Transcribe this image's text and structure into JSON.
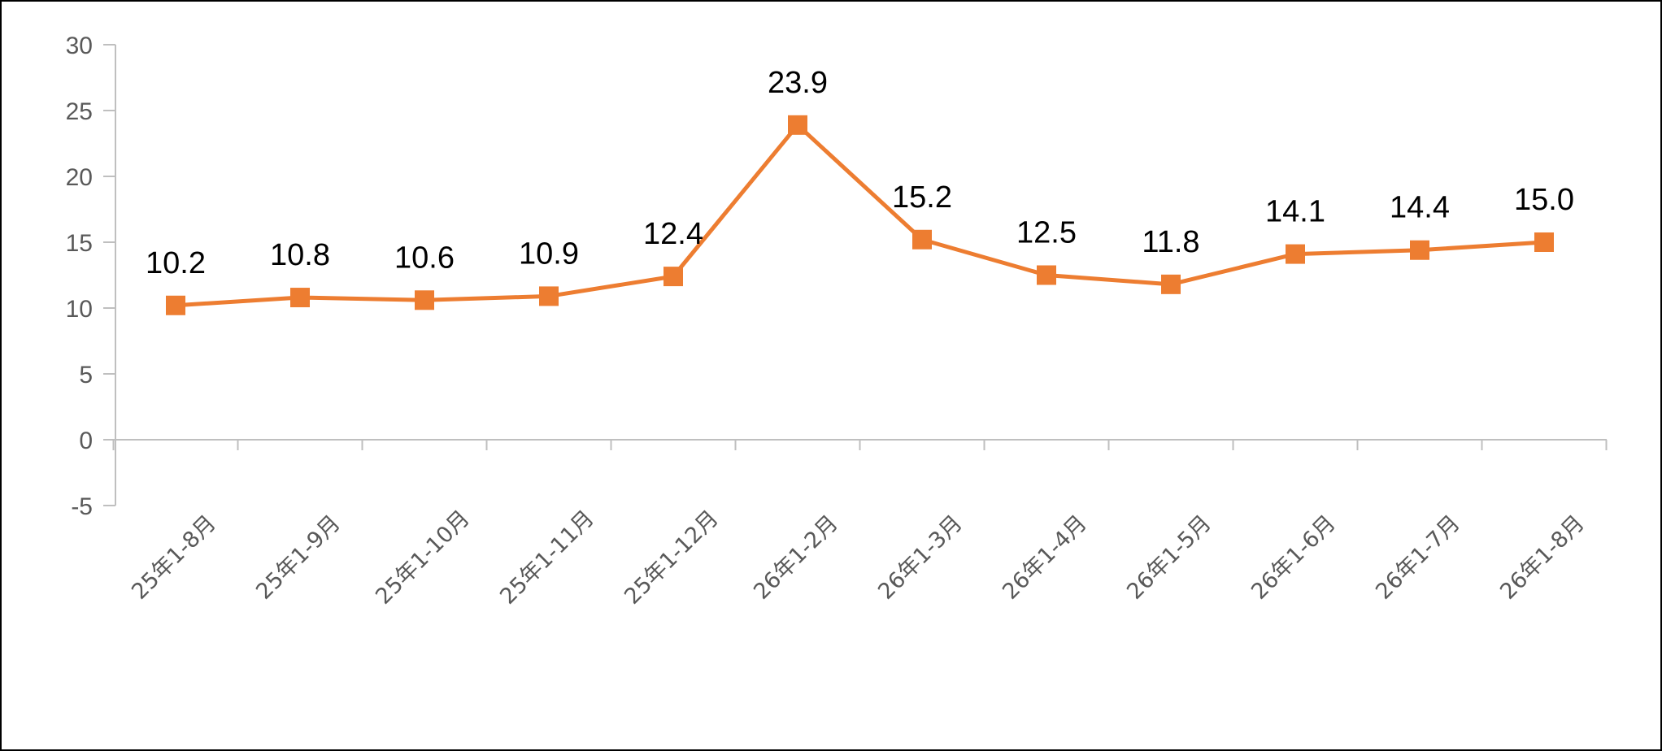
{
  "chart_data": {
    "type": "line",
    "title": "",
    "xlabel": "",
    "ylabel": "",
    "categories": [
      "25年1-8月",
      "25年1-9月",
      "25年1-10月",
      "25年1-11月",
      "25年1-12月",
      "26年1-2月",
      "26年1-3月",
      "26年1-4月",
      "26年1-5月",
      "26年1-6月",
      "26年1-7月",
      "26年1-8月"
    ],
    "series": [
      {
        "values": [
          10.2,
          10.8,
          10.6,
          10.9,
          12.4,
          23.9,
          15.2,
          12.5,
          11.8,
          14.1,
          14.4,
          15.0
        ],
        "labels": [
          "10.2",
          "10.8",
          "10.6",
          "10.9",
          "12.4",
          "23.9",
          "15.2",
          "12.5",
          "11.8",
          "14.1",
          "14.4",
          "15.0"
        ],
        "color": "#ED7D31",
        "marker": "square"
      }
    ],
    "ylim": [
      -5,
      30
    ],
    "yticks": [
      30,
      25,
      20,
      15,
      10,
      5,
      0,
      -5
    ],
    "ytick_labels": [
      "30",
      "25",
      "20",
      "15",
      "10",
      "5",
      "0",
      "-5"
    ],
    "grid": false,
    "legend": "none",
    "axis_color": "#BFBFBF"
  }
}
